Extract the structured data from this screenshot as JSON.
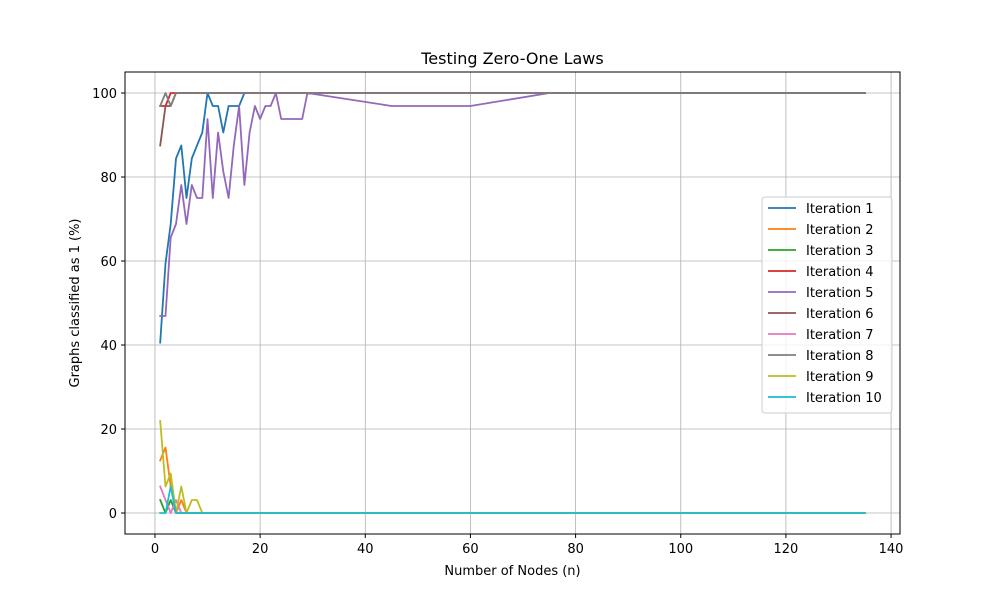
{
  "chart_data": {
    "type": "line",
    "title": "Testing Zero-One Laws",
    "xlabel": "Number of Nodes (n)",
    "ylabel": "Graphs classified as 1 (%)",
    "xlim": [
      -5.7,
      141.7
    ],
    "ylim": [
      -5,
      105
    ],
    "xticks": [
      0,
      20,
      40,
      60,
      80,
      100,
      120,
      140
    ],
    "yticks": [
      0,
      20,
      40,
      60,
      80,
      100
    ],
    "grid": true,
    "legend_position": "center-right",
    "series": [
      {
        "name": "Iteration 1",
        "color": "#1f77b4",
        "points": [
          [
            1,
            40.6
          ],
          [
            2,
            59.4
          ],
          [
            3,
            68.8
          ],
          [
            4,
            84.4
          ],
          [
            5,
            87.5
          ],
          [
            6,
            75
          ],
          [
            7,
            84.4
          ],
          [
            8,
            87.5
          ],
          [
            9,
            90.6
          ],
          [
            10,
            100
          ],
          [
            11,
            96.9
          ],
          [
            12,
            96.9
          ],
          [
            13,
            90.6
          ],
          [
            14,
            96.9
          ],
          [
            15,
            96.9
          ],
          [
            16,
            96.9
          ],
          [
            17,
            100
          ],
          [
            135,
            100
          ]
        ]
      },
      {
        "name": "Iteration 2",
        "color": "#ff7f0e",
        "points": [
          [
            1,
            12.5
          ],
          [
            2,
            15.6
          ],
          [
            3,
            6.3
          ],
          [
            4,
            0
          ],
          [
            5,
            3.1
          ],
          [
            6,
            0
          ],
          [
            135,
            0
          ]
        ]
      },
      {
        "name": "Iteration 3",
        "color": "#2ca02c",
        "points": [
          [
            1,
            3.1
          ],
          [
            2,
            0
          ],
          [
            3,
            3.1
          ],
          [
            4,
            0
          ],
          [
            135,
            0
          ]
        ]
      },
      {
        "name": "Iteration 4",
        "color": "#d62728",
        "points": [
          [
            1,
            96.9
          ],
          [
            2,
            96.9
          ],
          [
            3,
            100
          ],
          [
            135,
            100
          ]
        ]
      },
      {
        "name": "Iteration 5",
        "color": "#9467bd",
        "points": [
          [
            1,
            46.9
          ],
          [
            2,
            46.9
          ],
          [
            3,
            65.6
          ],
          [
            4,
            68.8
          ],
          [
            5,
            78.1
          ],
          [
            6,
            68.8
          ],
          [
            7,
            78.1
          ],
          [
            8,
            75
          ],
          [
            9,
            75
          ],
          [
            10,
            93.8
          ],
          [
            11,
            75
          ],
          [
            12,
            90.6
          ],
          [
            13,
            81.3
          ],
          [
            14,
            75
          ],
          [
            15,
            87.5
          ],
          [
            16,
            96.9
          ],
          [
            17,
            78.1
          ],
          [
            18,
            90.6
          ],
          [
            19,
            96.9
          ],
          [
            20,
            93.8
          ],
          [
            21,
            96.9
          ],
          [
            22,
            96.9
          ],
          [
            23,
            100
          ],
          [
            24,
            93.8
          ],
          [
            25,
            93.8
          ],
          [
            26,
            93.8
          ],
          [
            27,
            93.8
          ],
          [
            28,
            93.8
          ],
          [
            29,
            100
          ],
          [
            45,
            96.9
          ],
          [
            60,
            96.9
          ],
          [
            75,
            100
          ],
          [
            135,
            100
          ]
        ]
      },
      {
        "name": "Iteration 6",
        "color": "#8c564b",
        "points": [
          [
            1,
            87.5
          ],
          [
            2,
            96.9
          ],
          [
            3,
            96.9
          ],
          [
            4,
            100
          ],
          [
            135,
            100
          ]
        ]
      },
      {
        "name": "Iteration 7",
        "color": "#e377c2",
        "points": [
          [
            1,
            6.3
          ],
          [
            2,
            3.1
          ],
          [
            3,
            0
          ],
          [
            4,
            3.1
          ],
          [
            5,
            0
          ],
          [
            135,
            0
          ]
        ]
      },
      {
        "name": "Iteration 8",
        "color": "#7f7f7f",
        "points": [
          [
            1,
            96.9
          ],
          [
            2,
            100
          ],
          [
            3,
            96.9
          ],
          [
            4,
            100
          ],
          [
            135,
            100
          ]
        ]
      },
      {
        "name": "Iteration 9",
        "color": "#bcbd22",
        "points": [
          [
            1,
            21.9
          ],
          [
            2,
            6.3
          ],
          [
            3,
            9.4
          ],
          [
            4,
            0
          ],
          [
            5,
            6.3
          ],
          [
            6,
            0
          ],
          [
            7,
            3.1
          ],
          [
            8,
            3.1
          ],
          [
            9,
            0
          ],
          [
            135,
            0
          ]
        ]
      },
      {
        "name": "Iteration 10",
        "color": "#17becf",
        "points": [
          [
            1,
            0
          ],
          [
            2,
            0
          ],
          [
            3,
            6.3
          ],
          [
            4,
            0
          ],
          [
            135,
            0
          ]
        ]
      }
    ]
  }
}
